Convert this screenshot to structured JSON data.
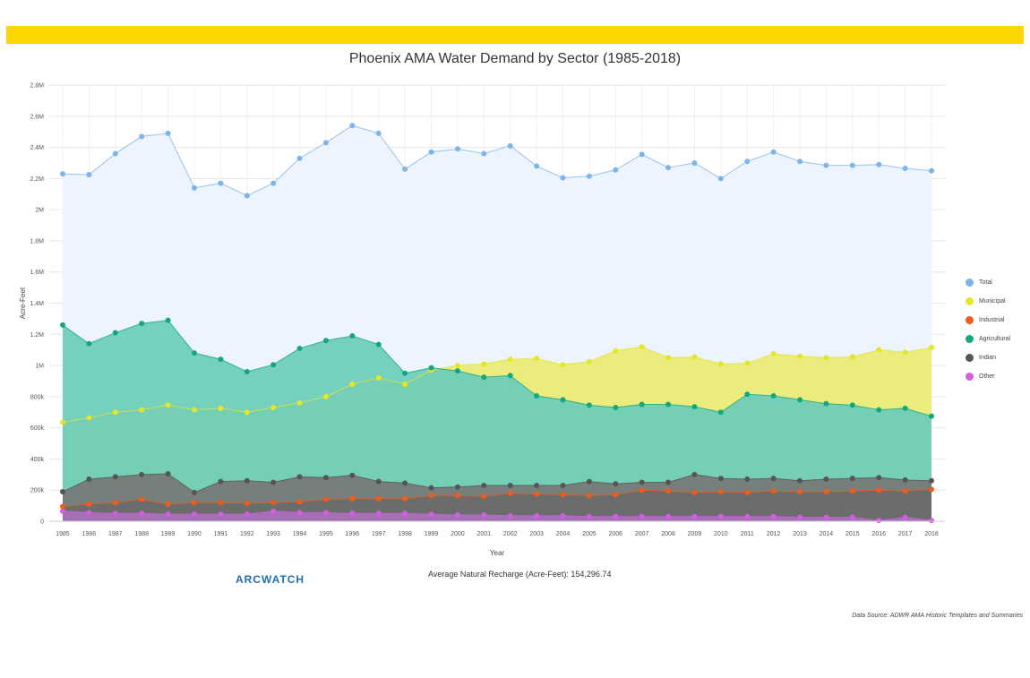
{
  "chart_data": {
    "type": "area",
    "title": "Phoenix AMA Water Demand by Sector (1985-2018)",
    "xlabel": "Year",
    "ylabel": "Acre-Feet",
    "ylim": [
      0,
      2800000
    ],
    "y_ticks": [
      "0",
      "200k",
      "400k",
      "600k",
      "800k",
      "1M",
      "1.2M",
      "1.4M",
      "1.6M",
      "1.8M",
      "2M",
      "2.2M",
      "2.4M",
      "2.6M",
      "2.8M"
    ],
    "grid": true,
    "legend_position": "right",
    "categories": [
      "1985",
      "1986",
      "1987",
      "1988",
      "1989",
      "1990",
      "1991",
      "1992",
      "1993",
      "1994",
      "1995",
      "1996",
      "1997",
      "1998",
      "1999",
      "2000",
      "2001",
      "2002",
      "2003",
      "2004",
      "2005",
      "2006",
      "2007",
      "2008",
      "2009",
      "2010",
      "2011",
      "2012",
      "2013",
      "2014",
      "2015",
      "2016",
      "2017",
      "2018"
    ],
    "series": [
      {
        "name": "Total",
        "color": "#7cb5ec",
        "fill": "#eef4fd",
        "values": [
          2230000,
          2225000,
          2360000,
          2470000,
          2490000,
          2140000,
          2170000,
          2090000,
          2170000,
          2330000,
          2430000,
          2540000,
          2490000,
          2260000,
          2370000,
          2390000,
          2360000,
          2410000,
          2280000,
          2205000,
          2215000,
          2255000,
          2355000,
          2270000,
          2300000,
          2200000,
          2310000,
          2370000,
          2310000,
          2285000,
          2285000,
          2290000,
          2265000,
          2250000
        ]
      },
      {
        "name": "Municipal",
        "color": "#e5e52a",
        "fill": "#e9ec77",
        "values": [
          635000,
          665000,
          700000,
          715000,
          745000,
          715000,
          725000,
          700000,
          730000,
          760000,
          800000,
          880000,
          920000,
          880000,
          970000,
          1000000,
          1010000,
          1040000,
          1045000,
          1005000,
          1025000,
          1095000,
          1120000,
          1050000,
          1055000,
          1010000,
          1015000,
          1075000,
          1060000,
          1050000,
          1055000,
          1100000,
          1085000,
          1115000
        ]
      },
      {
        "name": "Industrial",
        "color": "#f15c1b",
        "fill": "#6a6b6b",
        "values": [
          95000,
          110000,
          120000,
          140000,
          110000,
          120000,
          120000,
          115000,
          120000,
          125000,
          140000,
          145000,
          145000,
          145000,
          165000,
          165000,
          160000,
          180000,
          175000,
          170000,
          165000,
          170000,
          200000,
          195000,
          185000,
          190000,
          185000,
          195000,
          190000,
          190000,
          195000,
          200000,
          195000,
          205000
        ]
      },
      {
        "name": "Agricultural",
        "color": "#13a87c",
        "fill": "#6fcdba",
        "values": [
          1260000,
          1140000,
          1210000,
          1270000,
          1290000,
          1080000,
          1040000,
          960000,
          1005000,
          1110000,
          1160000,
          1190000,
          1135000,
          950000,
          985000,
          965000,
          925000,
          935000,
          805000,
          780000,
          745000,
          730000,
          750000,
          750000,
          735000,
          700000,
          815000,
          805000,
          780000,
          755000,
          745000,
          715000,
          725000,
          675000
        ]
      },
      {
        "name": "Indian",
        "color": "#555555",
        "fill": "#767a77",
        "values": [
          190000,
          270000,
          285000,
          300000,
          305000,
          185000,
          255000,
          260000,
          250000,
          285000,
          280000,
          295000,
          255000,
          245000,
          215000,
          220000,
          230000,
          230000,
          230000,
          230000,
          255000,
          240000,
          250000,
          250000,
          300000,
          275000,
          270000,
          275000,
          260000,
          270000,
          275000,
          280000,
          265000,
          260000
        ]
      },
      {
        "name": "Other",
        "color": "#d15fdf",
        "fill": "#a870b9",
        "values": [
          65000,
          55000,
          50000,
          50000,
          45000,
          45000,
          45000,
          45000,
          65000,
          55000,
          55000,
          50000,
          50000,
          50000,
          45000,
          40000,
          40000,
          35000,
          35000,
          35000,
          30000,
          30000,
          30000,
          30000,
          30000,
          30000,
          30000,
          30000,
          25000,
          25000,
          25000,
          5000,
          25000,
          5000
        ]
      }
    ],
    "annotation": "Average Natural Recharge (Acre-Feet): 154,296.74"
  },
  "brand": "ARCWATCH",
  "source": "Data Source: ADWR AMA Historic Templates and Summaries"
}
